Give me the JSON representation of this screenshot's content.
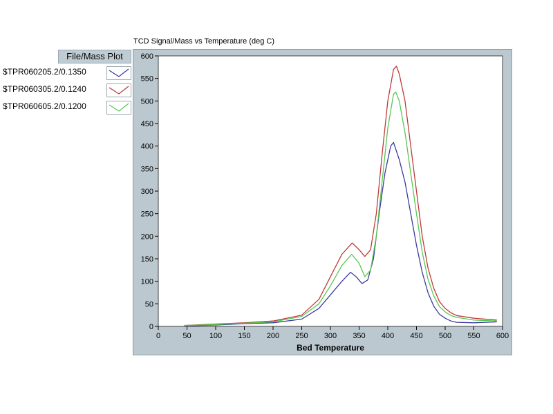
{
  "chart_data": {
    "type": "line",
    "title": "TCD Signal/Mass vs Temperature  (deg C)",
    "xlabel": "Bed Temperature",
    "ylabel": "",
    "xlim": [
      0,
      600
    ],
    "ylim": [
      0,
      600
    ],
    "xticks": [
      0,
      50,
      100,
      150,
      200,
      250,
      300,
      350,
      400,
      450,
      500,
      550,
      600
    ],
    "yticks": [
      0,
      50,
      100,
      150,
      200,
      250,
      300,
      350,
      400,
      450,
      500,
      550,
      600
    ],
    "grid": false,
    "legend": {
      "title": "File/Mass  Plot",
      "placement": "left"
    },
    "series": [
      {
        "name": "$TPR060205.2/0.1350",
        "color": "#3a3aa0",
        "x": [
          45,
          100,
          150,
          200,
          250,
          280,
          300,
          320,
          335,
          345,
          355,
          365,
          375,
          385,
          395,
          405,
          410,
          420,
          430,
          440,
          450,
          460,
          470,
          480,
          490,
          500,
          510,
          520,
          550,
          590
        ],
        "y": [
          1,
          3,
          6,
          8,
          16,
          40,
          70,
          100,
          120,
          110,
          95,
          103,
          150,
          250,
          340,
          400,
          408,
          370,
          320,
          250,
          180,
          120,
          75,
          45,
          27,
          18,
          12,
          9,
          8,
          10
        ]
      },
      {
        "name": "$TPR060305.2/0.1240",
        "color": "#c03838",
        "x": [
          45,
          100,
          150,
          200,
          250,
          280,
          300,
          320,
          338,
          350,
          360,
          370,
          380,
          390,
          400,
          410,
          415,
          420,
          430,
          440,
          450,
          460,
          470,
          480,
          490,
          500,
          510,
          520,
          550,
          590
        ],
        "y": [
          2,
          5,
          8,
          12,
          25,
          60,
          110,
          160,
          185,
          170,
          155,
          170,
          250,
          380,
          500,
          570,
          577,
          560,
          500,
          400,
          300,
          200,
          130,
          85,
          55,
          40,
          30,
          24,
          18,
          14
        ]
      },
      {
        "name": "$TPR060605.2/0.1200",
        "color": "#56c84e",
        "x": [
          45,
          100,
          150,
          200,
          250,
          280,
          300,
          320,
          337,
          350,
          360,
          370,
          380,
          390,
          400,
          410,
          414,
          420,
          430,
          440,
          450,
          460,
          470,
          480,
          490,
          500,
          510,
          520,
          550,
          590
        ],
        "y": [
          2,
          4,
          7,
          10,
          22,
          50,
          90,
          135,
          160,
          140,
          110,
          125,
          200,
          320,
          440,
          515,
          520,
          500,
          430,
          340,
          250,
          165,
          105,
          68,
          44,
          32,
          24,
          20,
          14,
          12
        ]
      }
    ]
  }
}
